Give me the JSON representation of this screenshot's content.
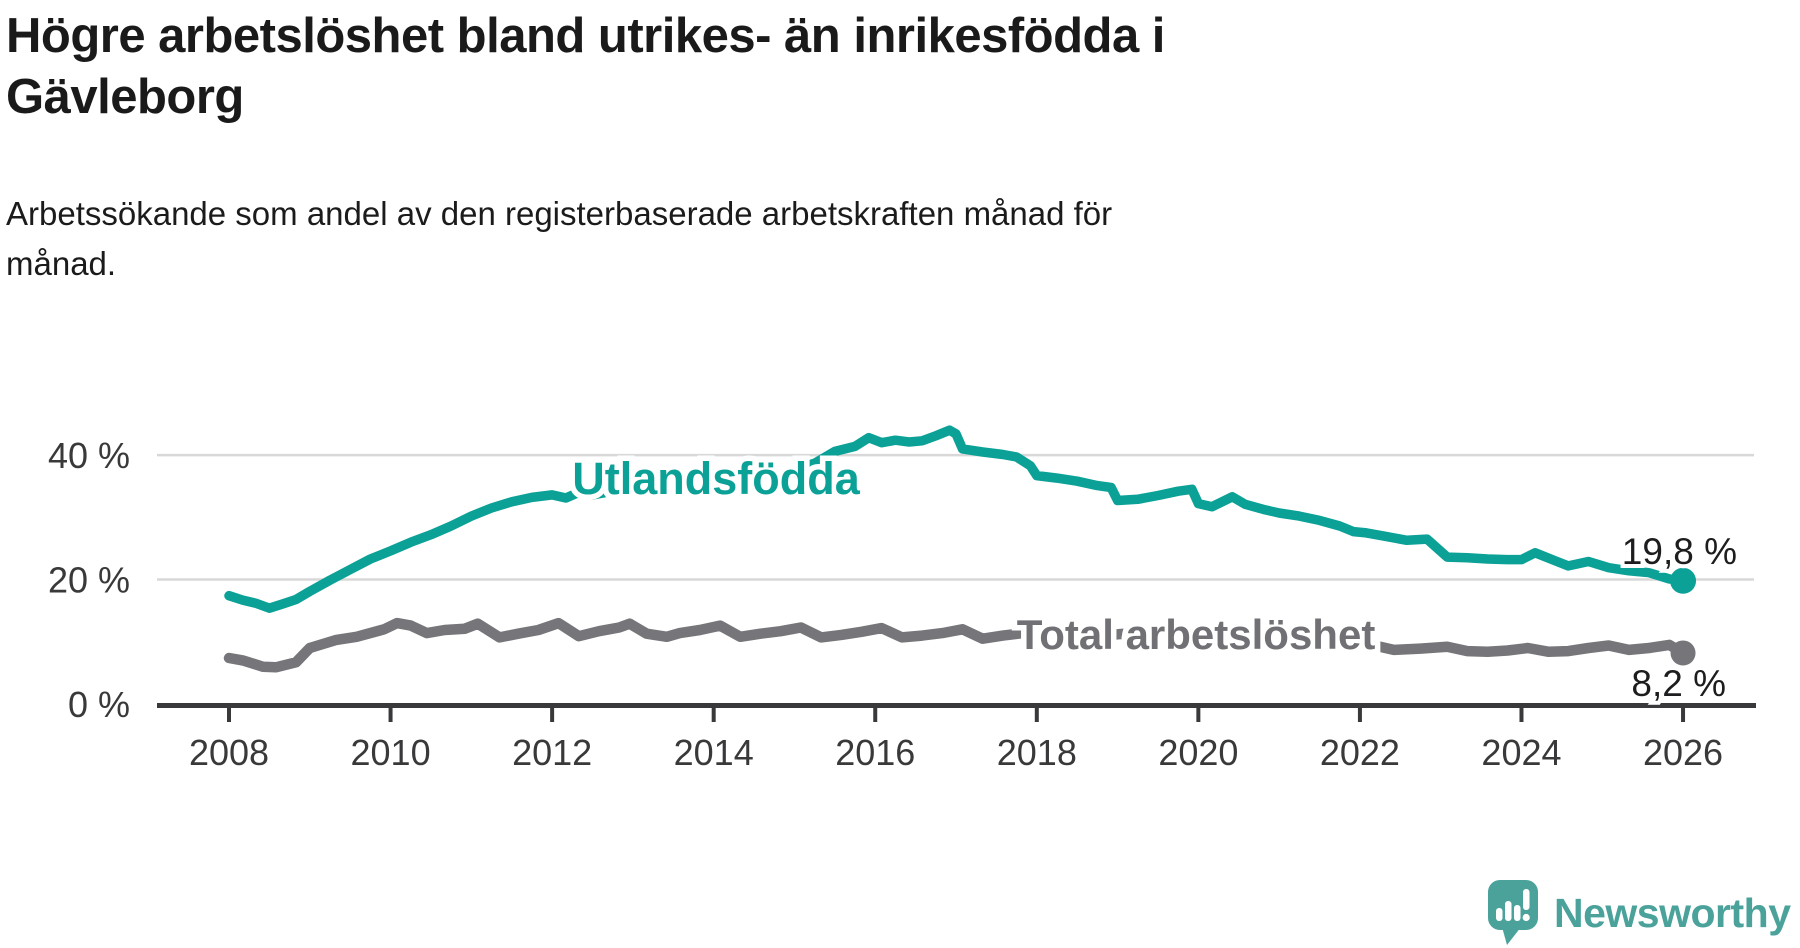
{
  "title": {
    "text": "Högre arbetslöshet bland utrikes- än inrikesfödda i Gävleborg",
    "line1": "Högre arbetslöshet bland utrikes- än inrikesfödda i",
    "line2": "Gävleborg"
  },
  "subtitle": {
    "text": "Arbetssökande som andel av den registerbaserade arbetskraften månad för månad.",
    "line1": "Arbetssökande som andel av den registerbaserade arbetskraften månad för",
    "line2": "månad."
  },
  "footer": {
    "brand": "Newsworthy",
    "logo_icon": "newsworthy-speech-bubble-bar-chart-icon"
  },
  "colors": {
    "accent_teal": "#0ba197",
    "series_gray": "#76767a",
    "label_gray": "#717175",
    "axis": "#39393b",
    "grid": "#d8d8d8",
    "text": "#1a1a1a",
    "brand_teal": "#4aa29b"
  },
  "chart_data": {
    "type": "line",
    "title": "Högre arbetslöshet bland utrikes- än inrikesfödda i Gävleborg",
    "subtitle": "Arbetssökande som andel av den registerbaserade arbetskraften månad för månad.",
    "x_axis": {
      "tick_labels": [
        "2008",
        "2010",
        "2012",
        "2014",
        "2016",
        "2018",
        "2020",
        "2022",
        "2024",
        "2026"
      ],
      "tick_values": [
        2008,
        2010,
        2012,
        2014,
        2016,
        2018,
        2020,
        2022,
        2024,
        2026
      ],
      "range": [
        2007.1,
        2026.9
      ]
    },
    "y_axis": {
      "tick_labels": [
        "0 %",
        "20 %",
        "40 %"
      ],
      "tick_values": [
        0,
        20,
        40
      ],
      "unit": "%",
      "range": [
        0,
        48
      ],
      "grid": true
    },
    "legend_position": "inline-labels",
    "series": [
      {
        "name": "Utlandsfödda",
        "color": "#0ba197",
        "end_label": "19,8 %",
        "end_value": 19.8,
        "points": [
          [
            2008.0,
            17.4
          ],
          [
            2008.17,
            16.7
          ],
          [
            2008.33,
            16.2
          ],
          [
            2008.5,
            15.4
          ],
          [
            2008.67,
            16.1
          ],
          [
            2008.83,
            16.8
          ],
          [
            2009.0,
            18.1
          ],
          [
            2009.25,
            19.9
          ],
          [
            2009.5,
            21.6
          ],
          [
            2009.75,
            23.3
          ],
          [
            2010.0,
            24.6
          ],
          [
            2010.25,
            26.0
          ],
          [
            2010.5,
            27.2
          ],
          [
            2010.75,
            28.6
          ],
          [
            2011.0,
            30.2
          ],
          [
            2011.25,
            31.5
          ],
          [
            2011.5,
            32.5
          ],
          [
            2011.75,
            33.2
          ],
          [
            2012.0,
            33.6
          ],
          [
            2012.17,
            33.1
          ],
          [
            2012.33,
            34.0
          ],
          [
            2012.5,
            33.6
          ],
          [
            2012.75,
            34.2
          ],
          [
            2013.0,
            34.4
          ],
          [
            2013.25,
            34.1
          ],
          [
            2013.5,
            34.9
          ],
          [
            2013.75,
            35.0
          ],
          [
            2014.0,
            35.4
          ],
          [
            2014.25,
            35.1
          ],
          [
            2014.5,
            36.0
          ],
          [
            2014.75,
            36.6
          ],
          [
            2015.0,
            37.7
          ],
          [
            2015.25,
            38.7
          ],
          [
            2015.5,
            40.6
          ],
          [
            2015.75,
            41.4
          ],
          [
            2015.92,
            42.8
          ],
          [
            2016.08,
            42.0
          ],
          [
            2016.25,
            42.4
          ],
          [
            2016.42,
            42.1
          ],
          [
            2016.58,
            42.3
          ],
          [
            2016.75,
            43.1
          ],
          [
            2016.92,
            44.0
          ],
          [
            2017.0,
            43.4
          ],
          [
            2017.08,
            41.0
          ],
          [
            2017.33,
            40.5
          ],
          [
            2017.58,
            40.1
          ],
          [
            2017.75,
            39.7
          ],
          [
            2017.92,
            38.3
          ],
          [
            2018.0,
            36.7
          ],
          [
            2018.25,
            36.3
          ],
          [
            2018.5,
            35.8
          ],
          [
            2018.75,
            35.1
          ],
          [
            2018.92,
            34.8
          ],
          [
            2019.0,
            32.7
          ],
          [
            2019.25,
            32.9
          ],
          [
            2019.5,
            33.5
          ],
          [
            2019.75,
            34.2
          ],
          [
            2019.92,
            34.5
          ],
          [
            2020.0,
            32.2
          ],
          [
            2020.17,
            31.7
          ],
          [
            2020.42,
            33.3
          ],
          [
            2020.58,
            32.1
          ],
          [
            2020.83,
            31.2
          ],
          [
            2021.0,
            30.7
          ],
          [
            2021.25,
            30.2
          ],
          [
            2021.5,
            29.5
          ],
          [
            2021.75,
            28.6
          ],
          [
            2021.92,
            27.7
          ],
          [
            2022.08,
            27.5
          ],
          [
            2022.33,
            26.9
          ],
          [
            2022.58,
            26.3
          ],
          [
            2022.83,
            26.5
          ],
          [
            2023.08,
            23.6
          ],
          [
            2023.33,
            23.5
          ],
          [
            2023.58,
            23.3
          ],
          [
            2023.83,
            23.2
          ],
          [
            2024.0,
            23.2
          ],
          [
            2024.17,
            24.3
          ],
          [
            2024.42,
            23.0
          ],
          [
            2024.58,
            22.2
          ],
          [
            2024.83,
            22.9
          ],
          [
            2025.08,
            21.9
          ],
          [
            2025.33,
            21.4
          ],
          [
            2025.58,
            21.1
          ],
          [
            2025.83,
            20.1
          ],
          [
            2026.0,
            19.8
          ]
        ]
      },
      {
        "name": "Total arbetslöshet",
        "color": "#76767a",
        "end_label": "8,2 %",
        "end_value": 8.2,
        "points": [
          [
            2008.0,
            7.4
          ],
          [
            2008.17,
            7.0
          ],
          [
            2008.42,
            6.0
          ],
          [
            2008.58,
            5.9
          ],
          [
            2008.83,
            6.7
          ],
          [
            2009.0,
            9.0
          ],
          [
            2009.33,
            10.3
          ],
          [
            2009.58,
            10.8
          ],
          [
            2009.92,
            12.0
          ],
          [
            2010.08,
            13.0
          ],
          [
            2010.25,
            12.6
          ],
          [
            2010.45,
            11.4
          ],
          [
            2010.67,
            11.9
          ],
          [
            2010.92,
            12.1
          ],
          [
            2011.08,
            12.9
          ],
          [
            2011.35,
            10.7
          ],
          [
            2011.58,
            11.3
          ],
          [
            2011.83,
            11.9
          ],
          [
            2012.08,
            13.0
          ],
          [
            2012.33,
            10.9
          ],
          [
            2012.58,
            11.7
          ],
          [
            2012.83,
            12.3
          ],
          [
            2012.96,
            12.9
          ],
          [
            2013.17,
            11.3
          ],
          [
            2013.42,
            10.8
          ],
          [
            2013.58,
            11.4
          ],
          [
            2013.83,
            11.9
          ],
          [
            2014.08,
            12.6
          ],
          [
            2014.33,
            10.8
          ],
          [
            2014.58,
            11.3
          ],
          [
            2014.83,
            11.7
          ],
          [
            2015.08,
            12.3
          ],
          [
            2015.33,
            10.7
          ],
          [
            2015.58,
            11.1
          ],
          [
            2015.83,
            11.6
          ],
          [
            2016.08,
            12.2
          ],
          [
            2016.33,
            10.7
          ],
          [
            2016.58,
            11.0
          ],
          [
            2016.83,
            11.4
          ],
          [
            2017.08,
            12.0
          ],
          [
            2017.33,
            10.5
          ],
          [
            2017.58,
            11.0
          ],
          [
            2017.83,
            11.4
          ],
          [
            2018.08,
            11.8
          ],
          [
            2018.33,
            10.2
          ],
          [
            2018.58,
            10.7
          ],
          [
            2018.83,
            11.0
          ],
          [
            2019.08,
            11.3
          ],
          [
            2019.33,
            9.9
          ],
          [
            2019.58,
            10.3
          ],
          [
            2019.83,
            10.7
          ],
          [
            2020.08,
            11.0
          ],
          [
            2020.33,
            11.9
          ],
          [
            2020.58,
            12.2
          ],
          [
            2020.83,
            11.6
          ],
          [
            2021.08,
            11.3
          ],
          [
            2021.33,
            10.2
          ],
          [
            2021.58,
            9.9
          ],
          [
            2021.83,
            9.6
          ],
          [
            2022.08,
            9.7
          ],
          [
            2022.42,
            8.7
          ],
          [
            2022.75,
            8.9
          ],
          [
            2023.08,
            9.2
          ],
          [
            2023.33,
            8.5
          ],
          [
            2023.58,
            8.4
          ],
          [
            2023.83,
            8.6
          ],
          [
            2024.08,
            9.0
          ],
          [
            2024.33,
            8.4
          ],
          [
            2024.58,
            8.5
          ],
          [
            2024.83,
            9.0
          ],
          [
            2025.08,
            9.4
          ],
          [
            2025.33,
            8.7
          ],
          [
            2025.58,
            9.0
          ],
          [
            2025.83,
            9.5
          ],
          [
            2026.0,
            8.2
          ]
        ]
      }
    ]
  }
}
